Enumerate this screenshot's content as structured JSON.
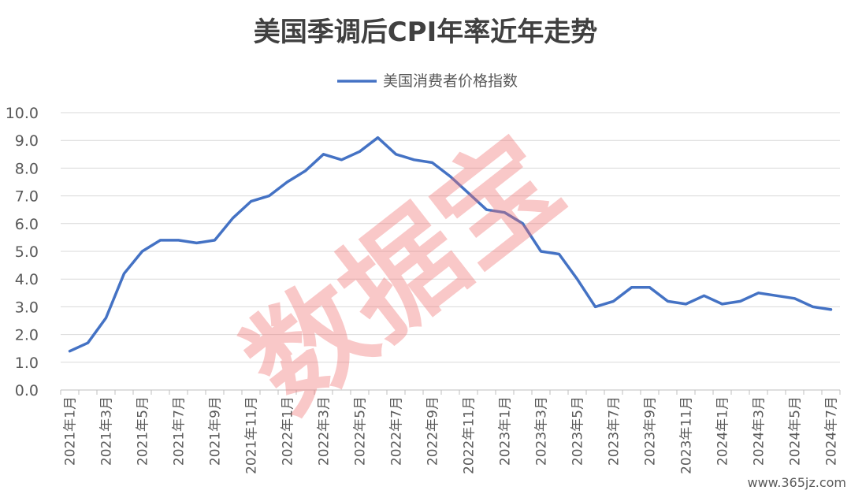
{
  "chart_data": {
    "type": "line",
    "title": "美国季调后CPI年率近年走势",
    "legend": {
      "position": "top-center"
    },
    "grid": true,
    "ylim": [
      0.0,
      10.0
    ],
    "yticks": [
      "0.0",
      "1.0",
      "2.0",
      "3.0",
      "4.0",
      "5.0",
      "6.0",
      "7.0",
      "8.0",
      "9.0",
      "10.0"
    ],
    "x": [
      "2021年1月",
      "2021年2月",
      "2021年3月",
      "2021年4月",
      "2021年5月",
      "2021年6月",
      "2021年7月",
      "2021年8月",
      "2021年9月",
      "2021年10月",
      "2021年11月",
      "2021年12月",
      "2022年1月",
      "2022年2月",
      "2022年3月",
      "2022年4月",
      "2022年5月",
      "2022年6月",
      "2022年7月",
      "2022年8月",
      "2022年9月",
      "2022年10月",
      "2022年11月",
      "2022年12月",
      "2023年1月",
      "2023年2月",
      "2023年3月",
      "2023年4月",
      "2023年5月",
      "2023年6月",
      "2023年7月",
      "2023年8月",
      "2023年9月",
      "2023年10月",
      "2023年11月",
      "2023年12月",
      "2024年1月",
      "2024年2月",
      "2024年3月",
      "2024年4月",
      "2024年5月",
      "2024年6月",
      "2024年7月"
    ],
    "xtick_labels": [
      "2021年1月",
      "2021年3月",
      "2021年5月",
      "2021年7月",
      "2021年9月",
      "2021年11月",
      "2022年1月",
      "2022年3月",
      "2022年5月",
      "2022年7月",
      "2022年9月",
      "2022年11月",
      "2023年1月",
      "2023年3月",
      "2023年5月",
      "2023年7月",
      "2023年9月",
      "2023年11月",
      "2024年1月",
      "2024年3月",
      "2024年5月",
      "2024年7月"
    ],
    "series": [
      {
        "name": "美国消费者价格指数",
        "color": "#4472C4",
        "values": [
          1.4,
          1.7,
          2.6,
          4.2,
          5.0,
          5.4,
          5.4,
          5.3,
          5.4,
          6.2,
          6.8,
          7.0,
          7.5,
          7.9,
          8.5,
          8.3,
          8.6,
          9.1,
          8.5,
          8.3,
          8.2,
          7.7,
          7.1,
          6.5,
          6.4,
          6.0,
          5.0,
          4.9,
          4.0,
          3.0,
          3.2,
          3.7,
          3.7,
          3.2,
          3.1,
          3.4,
          3.1,
          3.2,
          3.5,
          3.4,
          3.3,
          3.0,
          2.9
        ]
      }
    ]
  },
  "watermark": "数据宝",
  "corner_text": "www.365jz.com"
}
